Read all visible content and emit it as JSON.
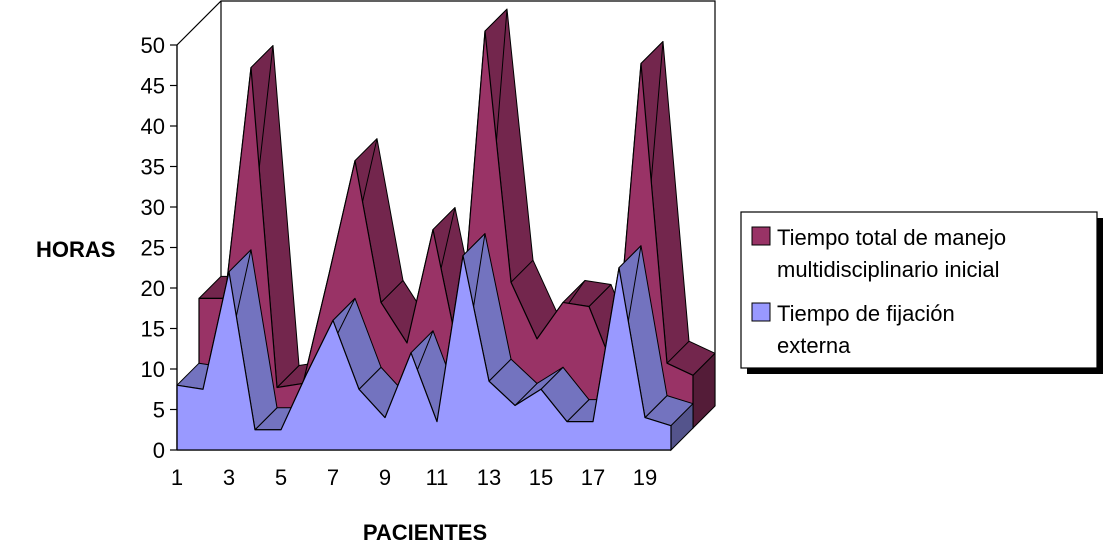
{
  "chart_data": {
    "type": "area",
    "title": "",
    "xlabel": "PACIENTES",
    "ylabel": "HORAS",
    "ylim": [
      0,
      50
    ],
    "yticks": [
      "0",
      "5",
      "10",
      "15",
      "20",
      "25",
      "30",
      "35",
      "40",
      "45",
      "50"
    ],
    "xticks": [
      "1",
      "3",
      "5",
      "7",
      "9",
      "11",
      "13",
      "15",
      "17",
      "19"
    ],
    "x": [
      1,
      2,
      3,
      4,
      5,
      6,
      7,
      8,
      9,
      10,
      11,
      12,
      13,
      14,
      15,
      16,
      17,
      18,
      19,
      20
    ],
    "three_d": true,
    "legend_position": "right",
    "series": [
      {
        "name": "Tiempo total de manejo multidisciplinario inicial",
        "name_lines": [
          "Tiempo total de manejo",
          "multidisciplinario inicial"
        ],
        "color": "#993366",
        "values": [
          16,
          16,
          44.5,
          5,
          5.5,
          19,
          33,
          15.5,
          10.5,
          24.5,
          9,
          49,
          18,
          11,
          15.5,
          15,
          7,
          45,
          8,
          6.5
        ]
      },
      {
        "name": "Tiempo de fijación externa",
        "name_lines": [
          "Tiempo de fijación",
          "externa"
        ],
        "color": "#9999ff",
        "values": [
          8,
          7.5,
          22,
          2.5,
          2.5,
          9.5,
          16,
          7.5,
          4,
          12,
          3.5,
          24,
          8.5,
          5.5,
          7.5,
          3.5,
          3.5,
          22.5,
          4,
          3
        ]
      }
    ]
  }
}
